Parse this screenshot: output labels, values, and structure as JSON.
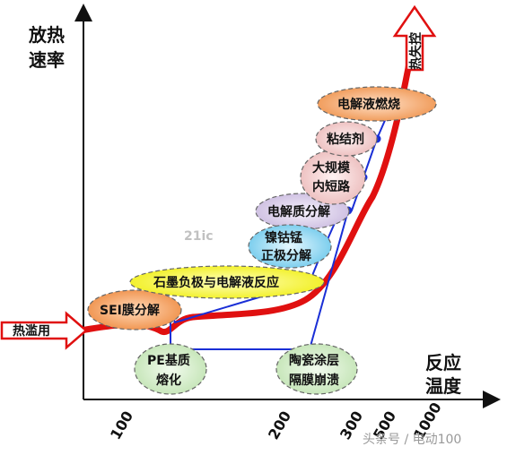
{
  "axes": {
    "y_label_line1": "放热",
    "y_label_line2": "速率",
    "x_label_line1": "反应",
    "x_label_line2": "温度",
    "x_ticks": [
      "100",
      "200",
      "300",
      "500",
      "1000"
    ]
  },
  "arrows": {
    "start_label": "热滥用",
    "end_label": "热失控"
  },
  "nodes": {
    "sei": "SEI膜分解",
    "graphite": "石墨负极与电解液反应",
    "cathode_line1": "镍钴锰",
    "cathode_line2": "正极分解",
    "electrolyte_decomp": "电解质分解",
    "short_line1": "大规模",
    "short_line2": "内短路",
    "binder": "粘结剂",
    "electrolyte_burn": "电解液燃烧",
    "pe_line1": "PE基质",
    "pe_line2": "熔化",
    "ceramic_line1": "陶瓷涂层",
    "ceramic_line2": "隔膜崩溃"
  },
  "watermarks": {
    "center": "21ic",
    "corner": "头条号 / 电动100"
  },
  "colors": {
    "curve": "#e01010",
    "connector": "#1a2fd6",
    "arrow_outline": "#e01010",
    "sei_fill": "#f08a3c",
    "graphite_fill": "#f2f020",
    "cathode_fill": "#7fd0ee",
    "electrolyte_fill": "#d8cce8",
    "short_fill": "#f3c8c8",
    "binder_fill": "#f3c8c8",
    "burn_fill": "#f29a55",
    "bottom_fill": "#cdeac0"
  }
}
